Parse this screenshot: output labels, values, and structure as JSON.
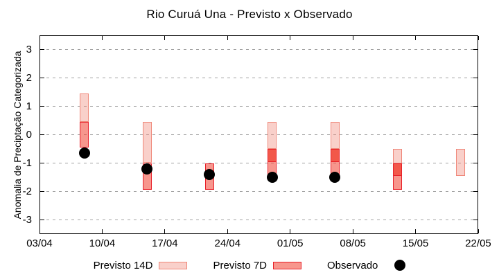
{
  "chart_data": {
    "type": "bar",
    "subtype": "floating-range-bars-with-scatter",
    "title": "Rio Curuá Una - Previsto x Observado",
    "ylabel": "Anomalia de Preciptação Categorizada",
    "xlabel": "",
    "ylim": [
      -3.5,
      3.5
    ],
    "y_ticks": [
      3,
      2,
      1,
      0,
      -1,
      -2,
      -3
    ],
    "x_ticks": [
      {
        "label": "03/04",
        "day": 0
      },
      {
        "label": "10/04",
        "day": 7
      },
      {
        "label": "17/04",
        "day": 14
      },
      {
        "label": "24/04",
        "day": 21
      },
      {
        "label": "01/05",
        "day": 28
      },
      {
        "label": "08/05",
        "day": 35
      },
      {
        "label": "15/05",
        "day": 42
      },
      {
        "label": "22/05",
        "day": 49
      }
    ],
    "x_range_days": [
      0,
      49
    ],
    "grid": "horizontal-dashed",
    "grid_color": "#a0a0a0",
    "legend_position": "bottom-center",
    "series": [
      {
        "name": "Previsto 14D",
        "type": "range-bar",
        "fill": "#f08a7a66",
        "stroke": "#ef8678",
        "points": [
          {
            "date": "08/04",
            "day": 5,
            "low": 0.45,
            "high": 1.45
          },
          {
            "date": "15/04",
            "day": 12,
            "low": -1.0,
            "high": 0.45
          },
          {
            "date": "29/04",
            "day": 26,
            "low": -0.5,
            "high": 0.45
          },
          {
            "date": "06/05",
            "day": 33,
            "low": -0.5,
            "high": 0.45
          },
          {
            "date": "13/05",
            "day": 40,
            "low": -1.0,
            "high": -0.5
          },
          {
            "date": "20/05",
            "day": 47,
            "low": -1.45,
            "high": -0.5
          }
        ]
      },
      {
        "name": "Previsto 7D",
        "type": "range-bar",
        "fill": "#f040308c",
        "fill_strong": "#f04030b8",
        "stroke": "#e81e28",
        "points": [
          {
            "date": "08/04",
            "day": 5,
            "low": -0.45,
            "high": 0.45
          },
          {
            "date": "15/04",
            "day": 12,
            "low": -1.95,
            "high": -1.0
          },
          {
            "date": "22/04",
            "day": 19,
            "low": -1.95,
            "high": -1.0
          },
          {
            "date": "29/04",
            "day": 26,
            "low": -1.45,
            "high": -0.5,
            "divider": -0.95
          },
          {
            "date": "06/05",
            "day": 33,
            "low": -1.45,
            "high": -0.5,
            "divider": -0.95
          },
          {
            "date": "13/05",
            "day": 40,
            "low": -1.95,
            "high": -1.0,
            "divider": -1.45
          }
        ]
      },
      {
        "name": "Observado",
        "type": "scatter",
        "marker": "circle",
        "color": "#000000",
        "points": [
          {
            "date": "08/04",
            "day": 5,
            "value": -0.65
          },
          {
            "date": "15/04",
            "day": 12,
            "value": -1.2
          },
          {
            "date": "22/04",
            "day": 19,
            "value": -1.4
          },
          {
            "date": "29/04",
            "day": 26,
            "value": -1.5
          },
          {
            "date": "06/05",
            "day": 33,
            "value": -1.5
          }
        ]
      }
    ],
    "colors": {
      "axis": "#000000",
      "background": "#ffffff",
      "text": "#000000"
    }
  }
}
